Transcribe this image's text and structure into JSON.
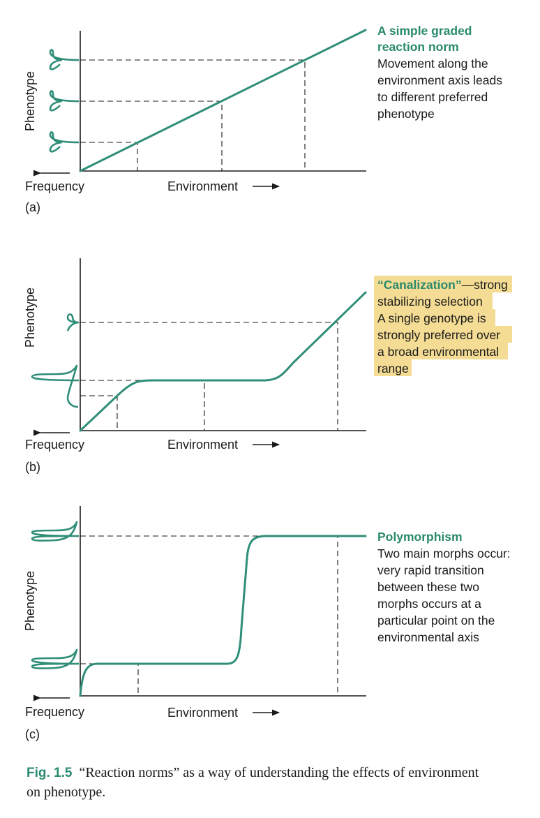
{
  "labels": {
    "y_axis": "Phenotype",
    "frequency": "Frequency",
    "environment": "Environment"
  },
  "panels": [
    {
      "tag": "(a)",
      "note_title": [
        "A simple graded",
        "reaction norm"
      ],
      "note_body": [
        "Movement along the",
        "environment axis leads",
        "to different preferred",
        "phenotype"
      ]
    },
    {
      "tag": "(b)",
      "note_title_quote": "“Canalization”",
      "note_title_rest": "—strong",
      "note_body": [
        "stabilizing selection",
        "A single genotype is",
        "strongly preferred over",
        "a broad environmental",
        "range"
      ],
      "highlight": true,
      "highlight_color": "#f4dc94"
    },
    {
      "tag": "(c)",
      "note_title": [
        "Polymorphism"
      ],
      "note_body": [
        "Two main morphs occur:",
        "very rapid transition",
        "between these two",
        "morphs occurs at a",
        "particular point on the",
        "environmental axis"
      ]
    }
  ],
  "caption": {
    "key": "Fig. 1.5",
    "line1": "“Reaction norms” as a way of understanding the effects of environment",
    "line2": "on phenotype."
  },
  "colors": {
    "accent": "#2a8a6e",
    "curve": "#2f8e78",
    "highlight": "#f4dc94"
  }
}
